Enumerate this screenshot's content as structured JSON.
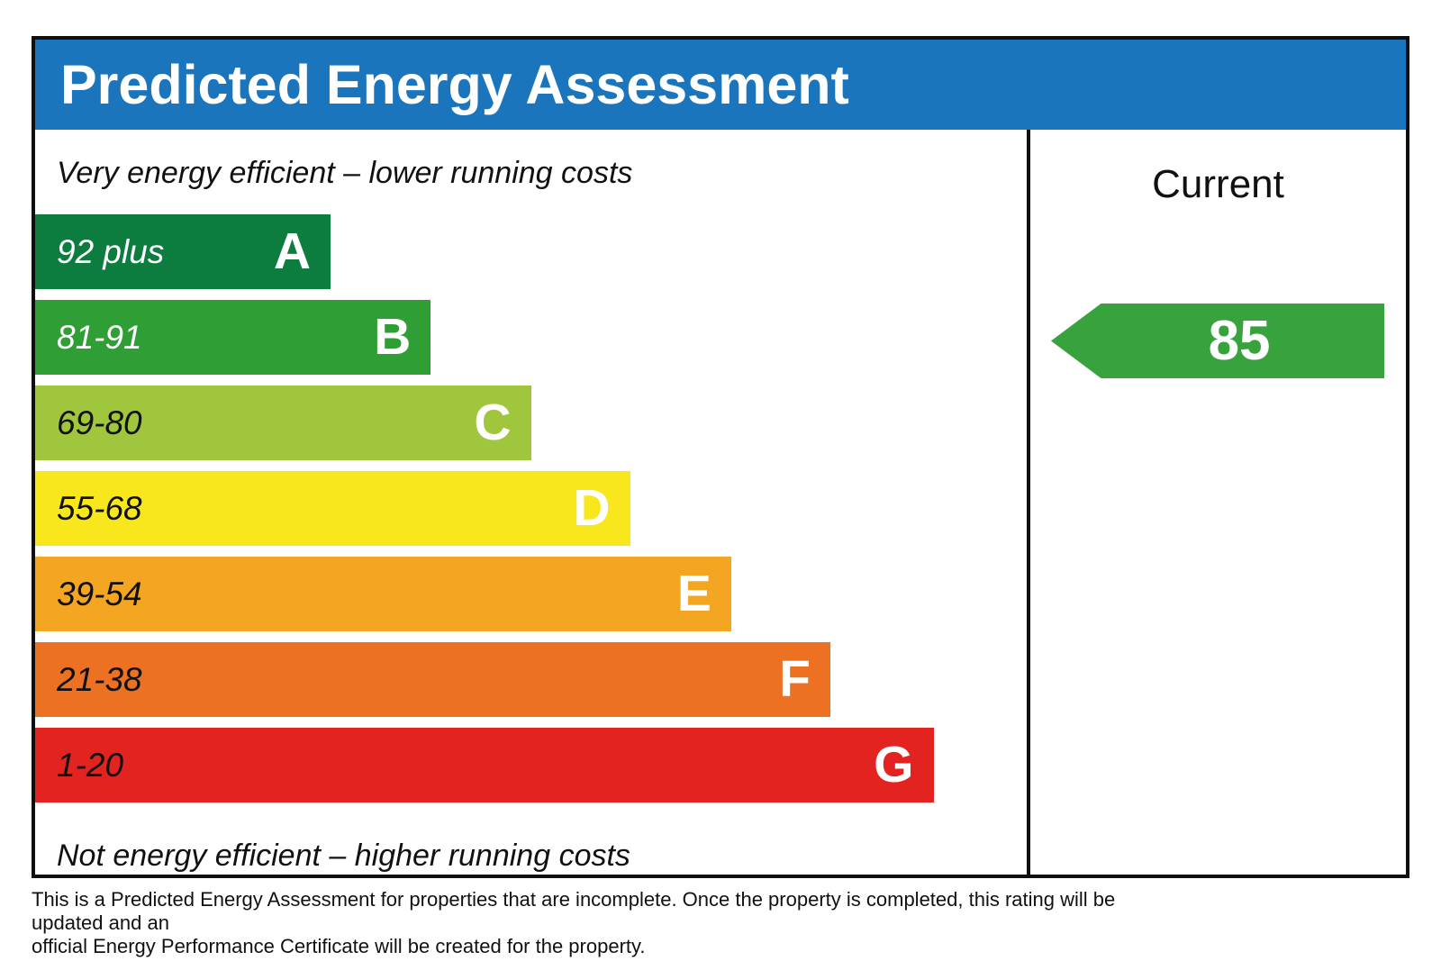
{
  "header": {
    "title": "Predicted Energy Assessment"
  },
  "notes": {
    "top": "Very energy efficient – lower running costs",
    "bottom": "Not energy efficient – higher running costs"
  },
  "current_panel": {
    "header": "Current",
    "value": "85"
  },
  "footer": {
    "line1": "This is a Predicted Energy Assessment for properties that are incomplete. Once the property is completed, this rating will be updated and an",
    "line2": "official Energy Performance Certificate will be created for the property."
  },
  "colors": {
    "header_blue": "#1b75bc",
    "border_black": "#0f0f0f",
    "arrow_green": "#38a33c",
    "band_text_light": "#ffffff",
    "band_text_dark": "#111111"
  },
  "chart_data": {
    "type": "bar",
    "title": "Predicted Energy Assessment",
    "subtitle_top": "Very energy efficient – lower running costs",
    "subtitle_bottom": "Not energy efficient – higher running costs",
    "legend_position": "right-column labelled Current",
    "bands": [
      {
        "letter": "A",
        "range_label": "92 plus",
        "range": [
          92,
          100
        ],
        "color": "#0c7c3f",
        "width_pct": 29.8,
        "label_color": "#ffffff"
      },
      {
        "letter": "B",
        "range_label": "81-91",
        "range": [
          81,
          91
        ],
        "color": "#2f9e35",
        "width_pct": 39.9,
        "label_color": "#ffffff"
      },
      {
        "letter": "C",
        "range_label": "69-80",
        "range": [
          69,
          80
        ],
        "color": "#9fc63d",
        "width_pct": 50.0,
        "label_color": "#111111"
      },
      {
        "letter": "D",
        "range_label": "55-68",
        "range": [
          55,
          68
        ],
        "color": "#f8e71c",
        "width_pct": 60.0,
        "label_color": "#111111"
      },
      {
        "letter": "E",
        "range_label": "39-54",
        "range": [
          39,
          54
        ],
        "color": "#f4a522",
        "width_pct": 70.2,
        "label_color": "#111111"
      },
      {
        "letter": "F",
        "range_label": "21-38",
        "range": [
          21,
          38
        ],
        "color": "#ec7123",
        "width_pct": 80.2,
        "label_color": "#111111"
      },
      {
        "letter": "G",
        "range_label": "1-20",
        "range": [
          1,
          20
        ],
        "color": "#e2231f",
        "width_pct": 90.6,
        "label_color": "#111111"
      }
    ],
    "current": {
      "value": 85,
      "band": "B",
      "arrow_color": "#38a33c"
    }
  }
}
